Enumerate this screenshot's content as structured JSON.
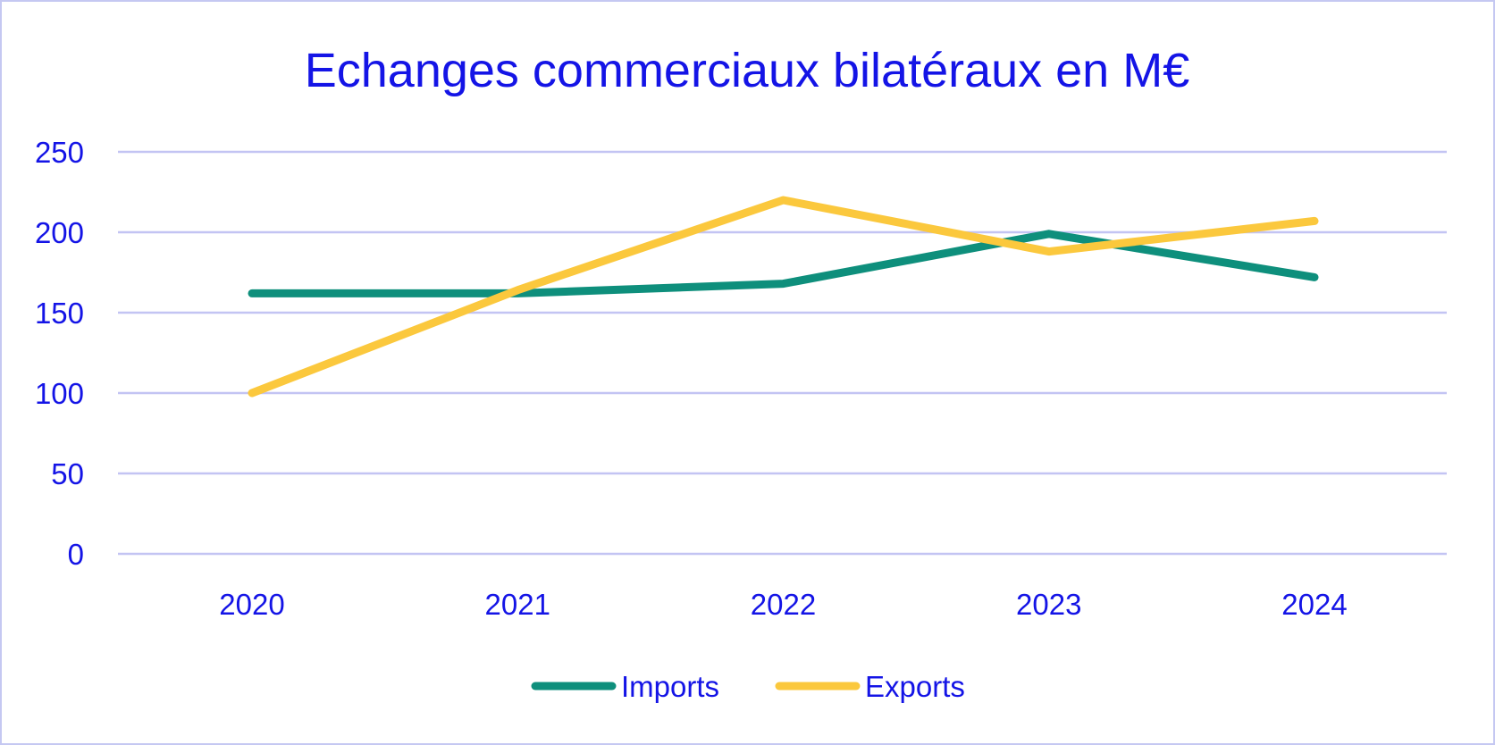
{
  "chart_data": {
    "type": "line",
    "title": "Echanges commerciaux bilatéraux en M€",
    "xlabel": "",
    "ylabel": "",
    "categories": [
      "2020",
      "2021",
      "2022",
      "2023",
      "2024"
    ],
    "ylim": [
      0,
      250
    ],
    "yticks": [
      "0",
      "50",
      "100",
      "150",
      "200",
      "250"
    ],
    "grid": true,
    "legend_position": "bottom",
    "series": [
      {
        "name": "Imports",
        "color": "#0e8f7c",
        "values": [
          162,
          162,
          168,
          199,
          172
        ]
      },
      {
        "name": "Exports",
        "color": "#fbc83d",
        "values": [
          100,
          164,
          220,
          188,
          207
        ]
      }
    ]
  }
}
